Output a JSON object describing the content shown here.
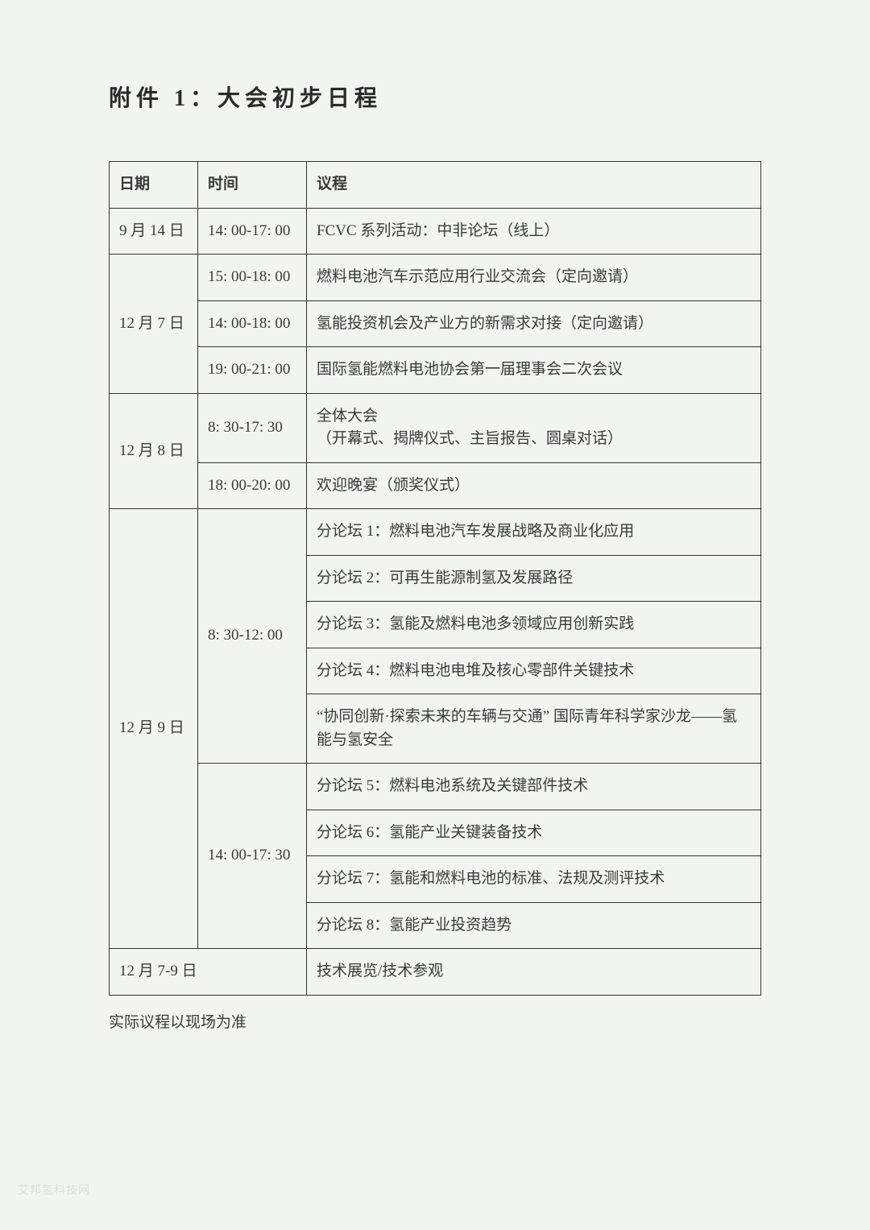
{
  "title": "附件 1：大会初步日程",
  "headers": {
    "date": "日期",
    "time": "时间",
    "agenda": "议程"
  },
  "rows": {
    "r1_date": "9 月 14 日",
    "r1_time": "14: 00-17: 00",
    "r1_agenda": "FCVC 系列活动：中非论坛（线上）",
    "r2_date": "12 月 7 日",
    "r2_time": "15: 00-18: 00",
    "r2_agenda": "燃料电池汽车示范应用行业交流会（定向邀请）",
    "r3_time": "14: 00-18: 00",
    "r3_agenda": "氢能投资机会及产业方的新需求对接（定向邀请）",
    "r4_time": "19: 00-21: 00",
    "r4_agenda": "国际氢能燃料电池协会第一届理事会二次会议",
    "r5_date": "12 月 8 日",
    "r5_time": "8: 30-17: 30",
    "r5_agenda": "全体大会\n（开幕式、揭牌仪式、主旨报告、圆桌对话）",
    "r6_time": "18: 00-20: 00",
    "r6_agenda": "欢迎晚宴（颁奖仪式）",
    "r7_date": "12 月 9 日",
    "r7_time": "8: 30-12: 00",
    "r7_agenda": "分论坛 1：燃料电池汽车发展战略及商业化应用",
    "r8_agenda": "分论坛 2：可再生能源制氢及发展路径",
    "r9_agenda": "分论坛 3：氢能及燃料电池多领域应用创新实践",
    "r10_agenda": "分论坛 4：燃料电池电堆及核心零部件关键技术",
    "r11_agenda": "“协同创新·探索未来的车辆与交通” 国际青年科学家沙龙——氢能与氢安全",
    "r12_time": "14: 00-17: 30",
    "r12_agenda": "分论坛 5：燃料电池系统及关键部件技术",
    "r13_agenda": "分论坛 6：氢能产业关键装备技术",
    "r14_agenda": "分论坛 7：氢能和燃料电池的标准、法规及测评技术",
    "r15_agenda": "分论坛 8：氢能产业投资趋势",
    "r16_date": "12 月 7-9 日",
    "r16_agenda": "技术展览/技术参观"
  },
  "footnote": "实际议程以现场为准",
  "watermark": "艾邦氢科技网"
}
